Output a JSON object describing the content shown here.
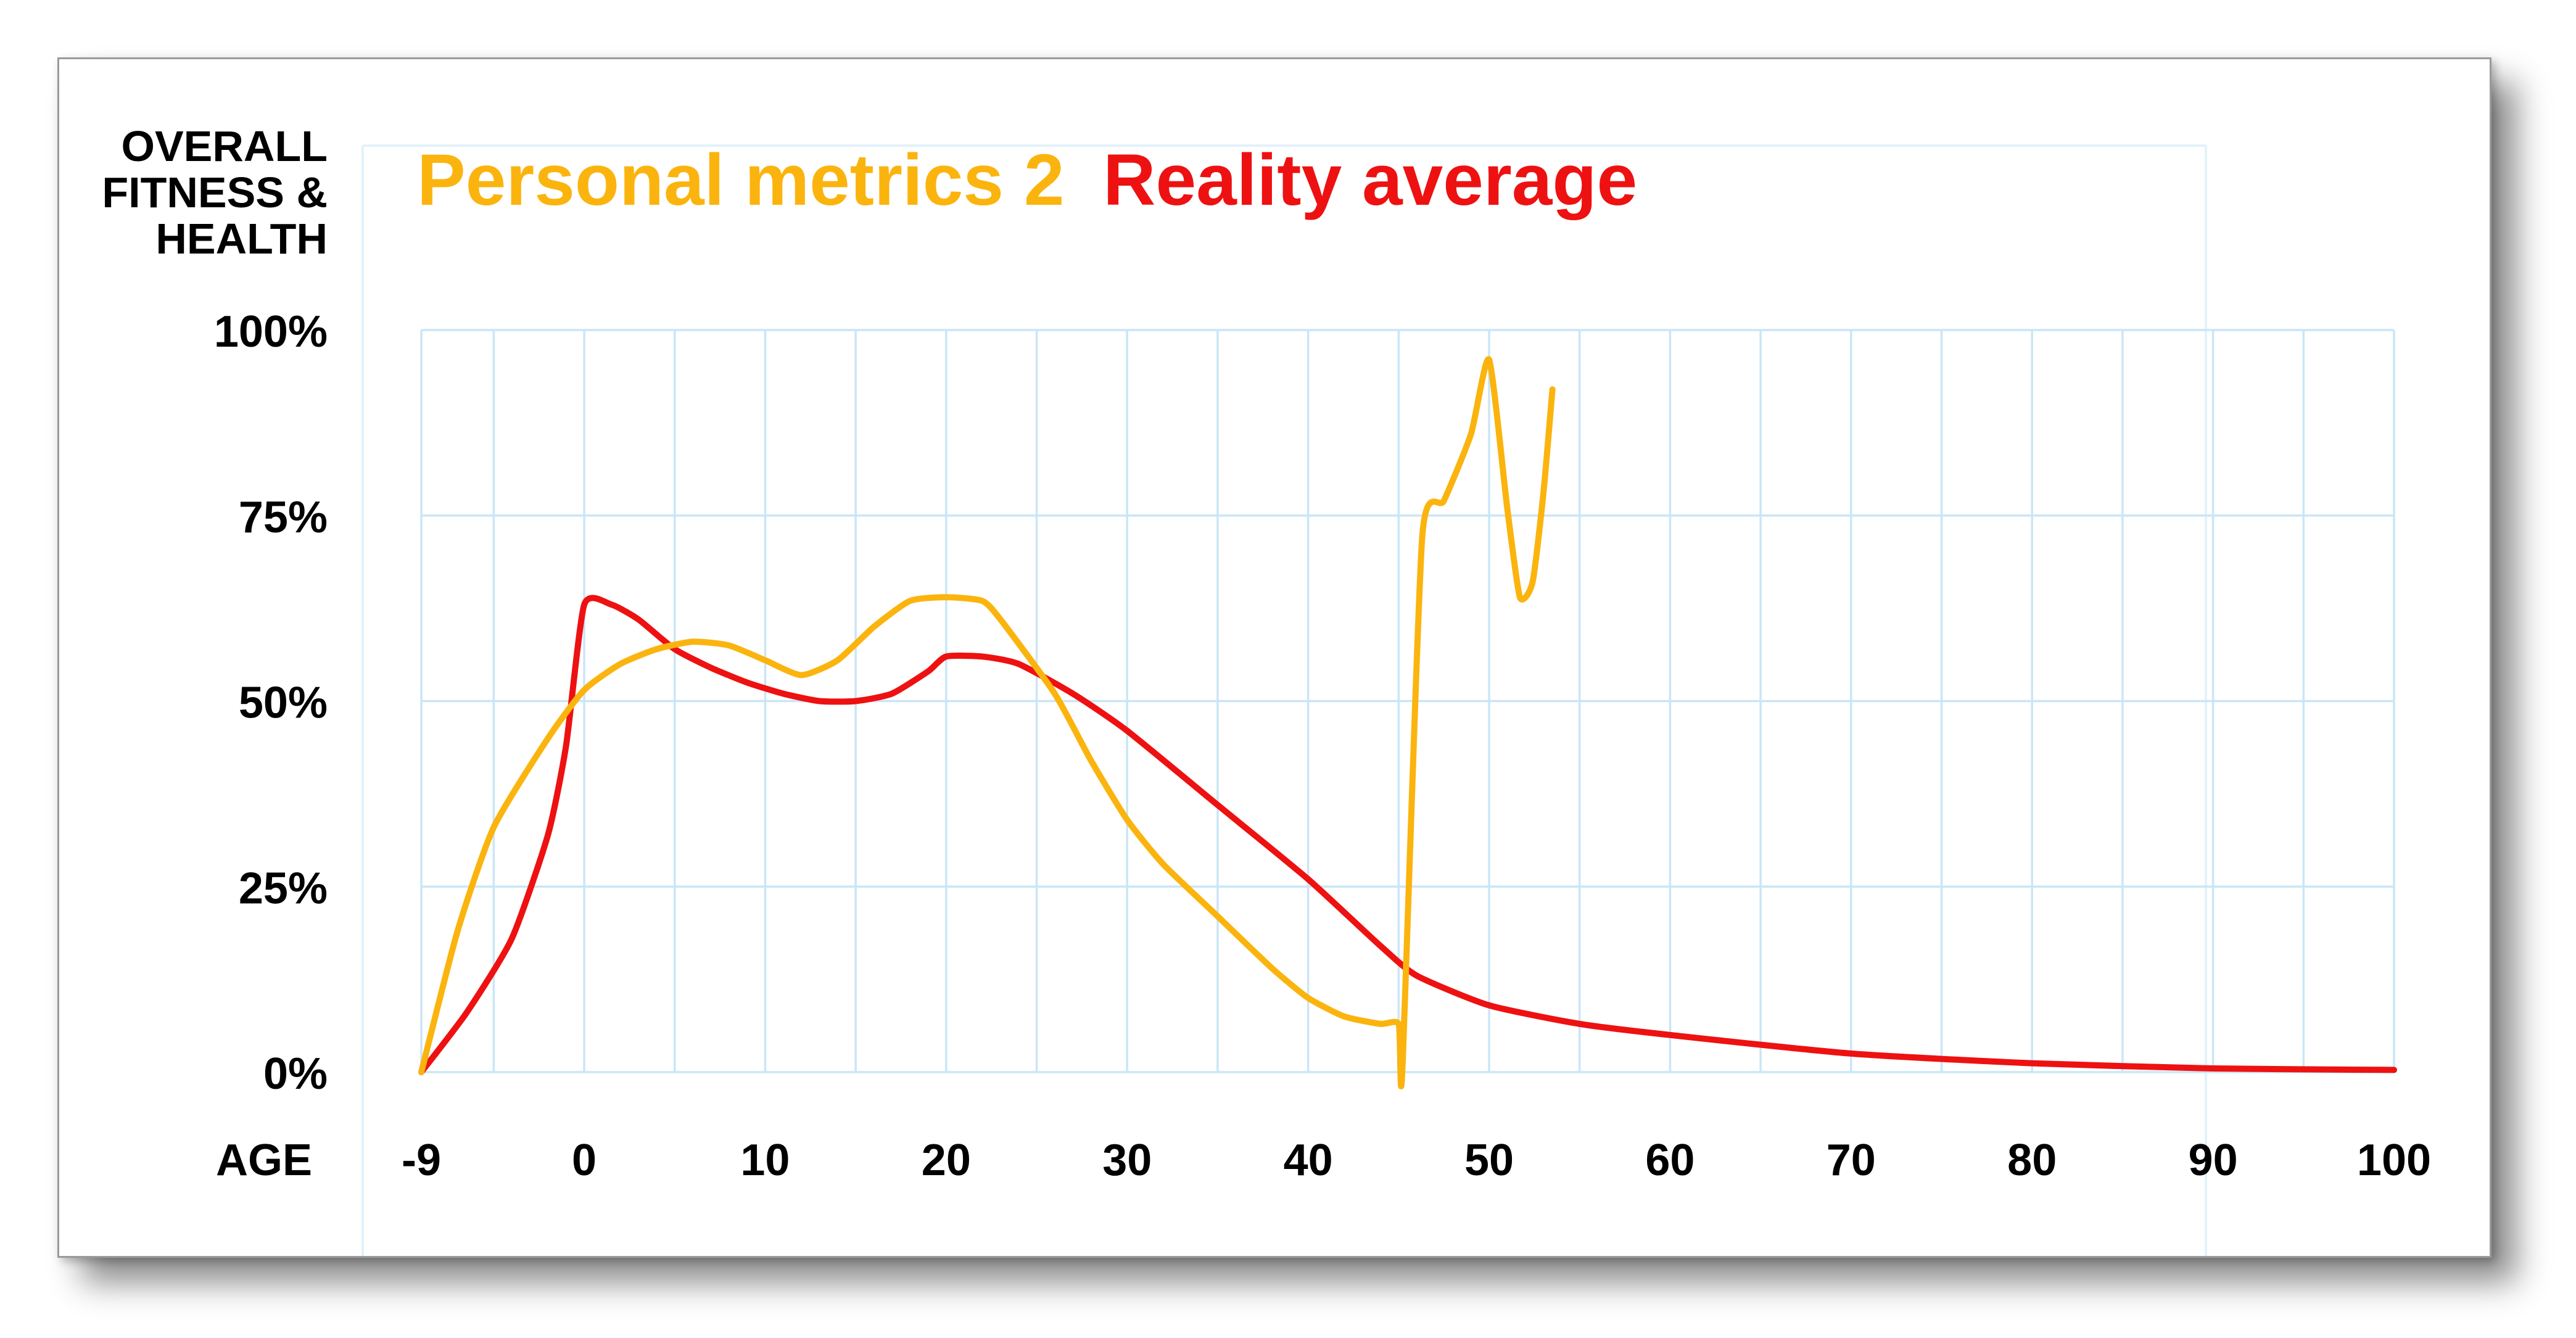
{
  "chart_data": {
    "type": "line",
    "title_parts": [
      {
        "text": "Personal metrics 2",
        "color": "#FBB40E"
      },
      {
        "text": "Reality average",
        "color": "#EE1111"
      }
    ],
    "ylabel": [
      "OVERALL",
      "FITNESS &",
      "HEALTH"
    ],
    "xlabel": "AGE",
    "x_ticks": [
      {
        "value": -9,
        "label": "-9"
      },
      {
        "value": 0,
        "label": "0"
      },
      {
        "value": 10,
        "label": "10"
      },
      {
        "value": 20,
        "label": "20"
      },
      {
        "value": 30,
        "label": "30"
      },
      {
        "value": 40,
        "label": "40"
      },
      {
        "value": 50,
        "label": "50"
      },
      {
        "value": 60,
        "label": "60"
      },
      {
        "value": 70,
        "label": "70"
      },
      {
        "value": 80,
        "label": "80"
      },
      {
        "value": 90,
        "label": "90"
      },
      {
        "value": 100,
        "label": "100"
      }
    ],
    "y_ticks": [
      {
        "value": 0,
        "label": "0%"
      },
      {
        "value": 25,
        "label": "25%"
      },
      {
        "value": 50,
        "label": "50%"
      },
      {
        "value": 75,
        "label": "75%"
      },
      {
        "value": 100,
        "label": "100%"
      }
    ],
    "xlim": [
      -9,
      100
    ],
    "ylim": [
      0,
      100
    ],
    "grid": true,
    "series": [
      {
        "name": "Reality average",
        "color": "#EE1111",
        "points": [
          [
            -9,
            0
          ],
          [
            -6.5,
            8
          ],
          [
            -4,
            18
          ],
          [
            -2,
            32
          ],
          [
            -1,
            44
          ],
          [
            0,
            63
          ],
          [
            1.5,
            63
          ],
          [
            3,
            61
          ],
          [
            5,
            57
          ],
          [
            7,
            54.5
          ],
          [
            9,
            52.5
          ],
          [
            11,
            51
          ],
          [
            13,
            50
          ],
          [
            15,
            50
          ],
          [
            17,
            51
          ],
          [
            19,
            54
          ],
          [
            20,
            56
          ],
          [
            22,
            56
          ],
          [
            24,
            55
          ],
          [
            27,
            51
          ],
          [
            30,
            46
          ],
          [
            35,
            36
          ],
          [
            40,
            26
          ],
          [
            44,
            17
          ],
          [
            46,
            13
          ],
          [
            50,
            9
          ],
          [
            55,
            6.5
          ],
          [
            60,
            5
          ],
          [
            70,
            2.5
          ],
          [
            80,
            1.2
          ],
          [
            90,
            0.5
          ],
          [
            100,
            0.3
          ]
        ]
      },
      {
        "name": "Personal metrics 2",
        "color": "#FBB40E",
        "points": [
          [
            -9,
            0
          ],
          [
            -7,
            19
          ],
          [
            -5,
            33
          ],
          [
            -2,
            45
          ],
          [
            0,
            51.5
          ],
          [
            2,
            55
          ],
          [
            4,
            57
          ],
          [
            6,
            58
          ],
          [
            8,
            57.5
          ],
          [
            10,
            55.5
          ],
          [
            12,
            53.5
          ],
          [
            14,
            55.5
          ],
          [
            16,
            60
          ],
          [
            18,
            63.5
          ],
          [
            20,
            64
          ],
          [
            22,
            63.5
          ],
          [
            23,
            61
          ],
          [
            26,
            51
          ],
          [
            28,
            42
          ],
          [
            30,
            34
          ],
          [
            32,
            28
          ],
          [
            35,
            21
          ],
          [
            38,
            14
          ],
          [
            40,
            10
          ],
          [
            42,
            7.5
          ],
          [
            44,
            6.5
          ],
          [
            45,
            6.5
          ],
          [
            45.2,
            0
          ],
          [
            46.3,
            72
          ],
          [
            47.5,
            77
          ],
          [
            49,
            86
          ],
          [
            50,
            96
          ],
          [
            51,
            76
          ],
          [
            51.7,
            64
          ],
          [
            52.4,
            66
          ],
          [
            53,
            78
          ],
          [
            53.5,
            92
          ]
        ]
      }
    ]
  }
}
